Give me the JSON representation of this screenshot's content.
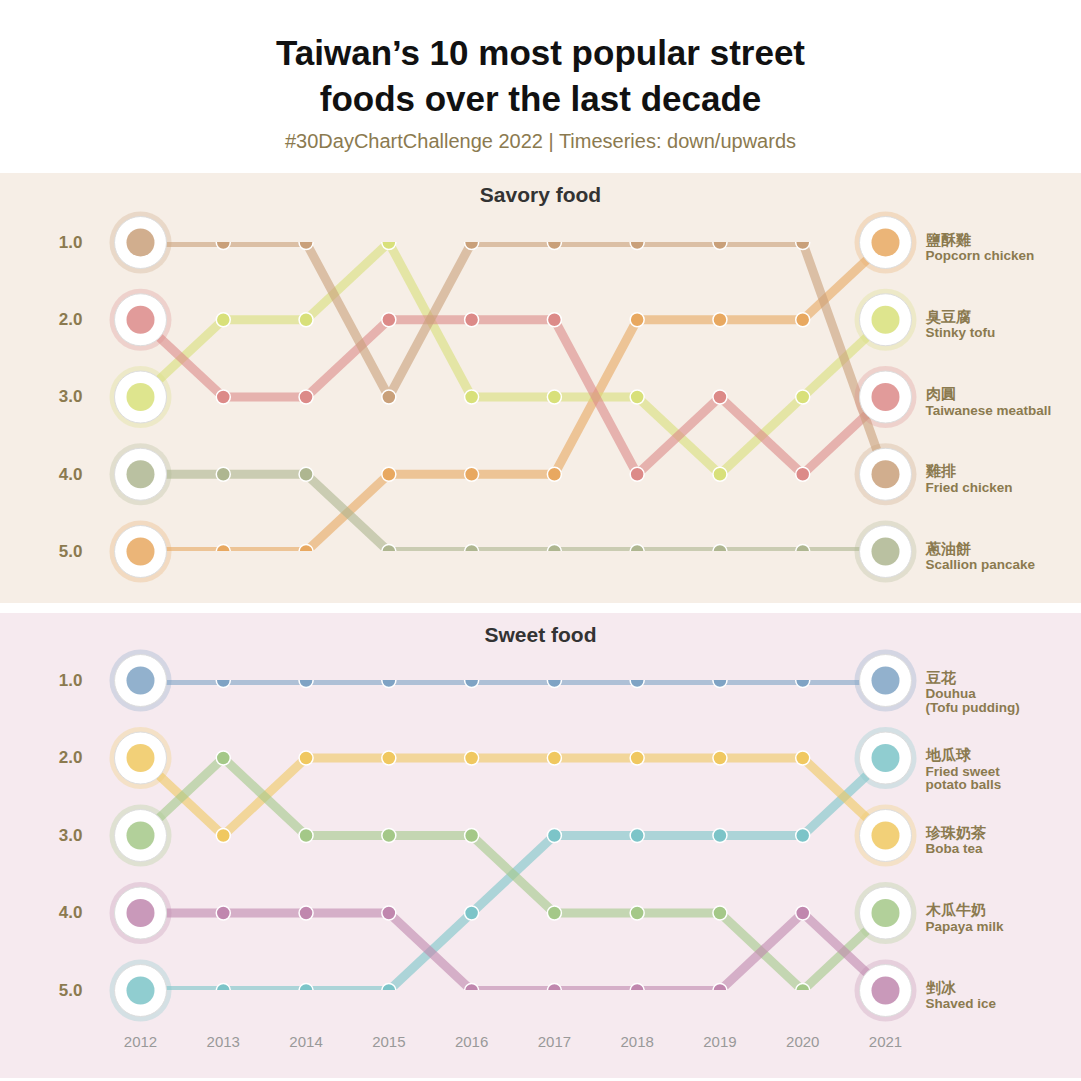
{
  "title": "Taiwan’s 10 most popular street foods over the last decade",
  "subtitle": "#30DayChartChallenge 2022 | Timeseries: down/upwards",
  "chart_data": [
    {
      "type": "line",
      "title": "Savory food",
      "x": [
        2012,
        2013,
        2014,
        2015,
        2016,
        2017,
        2018,
        2019,
        2020,
        2021
      ],
      "xlim": [
        2012,
        2021
      ],
      "xticks": [
        2012,
        2013,
        2014,
        2015,
        2016,
        2017,
        2018,
        2019,
        2020,
        2021
      ],
      "ylim": [
        5,
        1
      ],
      "yticks": [
        1,
        2,
        3,
        4,
        5
      ],
      "tick_labels": "y",
      "marker": "circle",
      "series": [
        {
          "name": "Popcorn chicken",
          "name_zh": "鹽酥雞",
          "color": "#e8a860",
          "values": [
            5,
            5,
            5,
            4,
            4,
            4,
            2,
            2,
            2,
            1
          ]
        },
        {
          "name": "Stinky tofu",
          "name_zh": "臭豆腐",
          "color": "#d8e07a",
          "values": [
            3,
            2,
            2,
            1,
            3,
            3,
            3,
            4,
            3,
            2
          ]
        },
        {
          "name": "Taiwanese meatball",
          "name_zh": "肉圓",
          "color": "#dc8a88",
          "values": [
            2,
            3,
            3,
            2,
            2,
            2,
            4,
            3,
            4,
            3
          ]
        },
        {
          "name": "Fried chicken",
          "name_zh": "雞排",
          "color": "#c9a07a",
          "values": [
            1,
            1,
            1,
            3,
            1,
            1,
            1,
            1,
            1,
            4
          ]
        },
        {
          "name": "Scallion pancake",
          "name_zh": "蔥油餅",
          "color": "#aeb690",
          "values": [
            4,
            4,
            4,
            5,
            5,
            5,
            5,
            5,
            5,
            5
          ]
        }
      ]
    },
    {
      "type": "line",
      "title": "Sweet food",
      "x": [
        2012,
        2013,
        2014,
        2015,
        2016,
        2017,
        2018,
        2019,
        2020,
        2021
      ],
      "xlim": [
        2012,
        2021
      ],
      "xticks": [
        2012,
        2013,
        2014,
        2015,
        2016,
        2017,
        2018,
        2019,
        2020,
        2021
      ],
      "ylim": [
        5,
        1
      ],
      "yticks": [
        1,
        2,
        3,
        4,
        5
      ],
      "marker": "circle",
      "series": [
        {
          "name": "Douhua\n(Tofu pudding)",
          "name_zh": "豆花",
          "color": "#7fa3c4",
          "values": [
            1,
            1,
            1,
            1,
            1,
            1,
            1,
            1,
            1,
            1
          ]
        },
        {
          "name": "Fried sweet\npotato balls",
          "name_zh": "地瓜球",
          "color": "#7cc4c8",
          "values": [
            5,
            5,
            5,
            5,
            4,
            3,
            3,
            3,
            3,
            2
          ]
        },
        {
          "name": "Boba tea",
          "name_zh": "珍珠奶茶",
          "color": "#f0c860",
          "values": [
            2,
            3,
            2,
            2,
            2,
            2,
            2,
            2,
            2,
            3
          ]
        },
        {
          "name": "Papaya milk",
          "name_zh": "木瓜牛奶",
          "color": "#a4c888",
          "values": [
            3,
            2,
            3,
            3,
            3,
            4,
            4,
            4,
            5,
            4
          ]
        },
        {
          "name": "Shaved ice",
          "name_zh": "剉冰",
          "color": "#c087ae",
          "values": [
            4,
            4,
            4,
            4,
            5,
            5,
            5,
            5,
            4,
            5
          ]
        }
      ]
    }
  ]
}
